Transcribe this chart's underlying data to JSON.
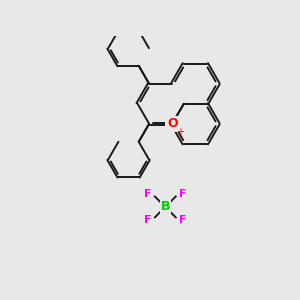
{
  "background_color": "#e8e8e8",
  "bond_color": "#1a1a1a",
  "oxygen_color": "#ff0000",
  "boron_color": "#00cc00",
  "fluorine_color": "#ff00ff",
  "plus_color": "#ff0000",
  "lw": 1.4,
  "dbo": 0.055,
  "figsize": [
    3.0,
    3.0
  ],
  "dpi": 100,
  "xlim": [
    0,
    10
  ],
  "ylim": [
    0,
    10
  ]
}
